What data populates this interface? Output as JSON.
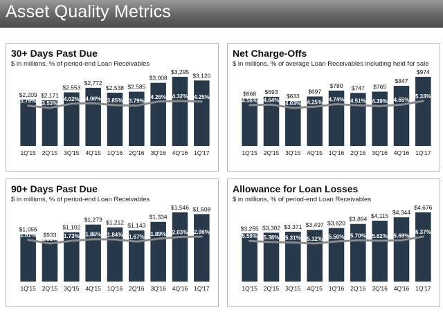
{
  "header": {
    "title": "Asset Quality Metrics"
  },
  "colors": {
    "bar": "#27394a",
    "line": "#8a8a8a",
    "bar_label": "#ffffff",
    "header_top": "#9a9a9a",
    "header_bottom": "#4a4a4a"
  },
  "chart_data": [
    {
      "type": "bar",
      "title": "30+ Days Past Due",
      "subtitle": "$ in millions, % of period-end Loan Receivables",
      "categories": [
        "1Q'15",
        "2Q'15",
        "3Q'15",
        "4Q'15",
        "1Q'16",
        "2Q'16",
        "3Q'16",
        "4Q'16",
        "1Q'17"
      ],
      "series": [
        {
          "values": [
            2209,
            2171,
            2553,
            2772,
            2538,
            2585,
            3008,
            3295,
            3120
          ],
          "labels": [
            "$2,209",
            "$2,171",
            "$2,553",
            "$2,772",
            "$2,538",
            "$2,585",
            "$3,008",
            "$3,295",
            "$3,120"
          ]
        },
        {
          "type": "line",
          "values": [
            3.79,
            3.53,
            4.02,
            4.06,
            3.85,
            3.79,
            4.26,
            4.32,
            4.25
          ],
          "labels": [
            "3.79%",
            "3.53%",
            "4.02%",
            "4.06%",
            "3.85%",
            "3.79%",
            "4.26%",
            "4.32%",
            "4.25%"
          ]
        }
      ],
      "grid": false
    },
    {
      "type": "bar",
      "title": "Net Charge-Offs",
      "subtitle": "$ in millions, % of average Loan Receivables including held for sale",
      "categories": [
        "1Q'15",
        "2Q'15",
        "3Q'15",
        "4Q'15",
        "1Q'16",
        "2Q'16",
        "3Q'16",
        "4Q'16",
        "1Q'17"
      ],
      "series": [
        {
          "values": [
            668,
            693,
            633,
            697,
            780,
            747,
            765,
            847,
            974
          ],
          "labels": [
            "$668",
            "$693",
            "$633",
            "$697",
            "$780",
            "$747",
            "$765",
            "$847",
            "$974"
          ]
        },
        {
          "type": "line",
          "values": [
            4.56,
            4.64,
            4.03,
            4.25,
            4.74,
            4.51,
            4.39,
            4.65,
            5.33
          ],
          "labels": [
            "4.56%",
            "4.64%",
            "4.03%",
            "4.25%",
            "4.74%",
            "4.51%",
            "4.39%",
            "4.65%",
            "5.33%"
          ]
        }
      ],
      "grid": false
    },
    {
      "type": "bar",
      "title": "90+ Days Past Due",
      "subtitle": "$ in millions, % of period-end Loan Receivables",
      "categories": [
        "1Q'15",
        "2Q'15",
        "3Q'15",
        "4Q'15",
        "1Q'16",
        "2Q'16",
        "3Q'16",
        "4Q'16",
        "1Q'17"
      ],
      "series": [
        {
          "values": [
            1056,
            933,
            1102,
            1273,
            1212,
            1143,
            1334,
            1546,
            1508
          ],
          "labels": [
            "$1,056",
            "$933",
            "$1,102",
            "$1,273",
            "$1,212",
            "$1,143",
            "$1,334",
            "$1,546",
            "$1,508"
          ]
        },
        {
          "type": "line",
          "values": [
            1.81,
            1.52,
            1.73,
            1.86,
            1.84,
            1.67,
            1.89,
            2.03,
            2.06
          ],
          "labels": [
            "1.81%",
            "1.52%",
            "1.73%",
            "1.86%",
            "1.84%",
            "1.67%",
            "1.89%",
            "2.03%",
            "2.06%"
          ]
        }
      ],
      "grid": false
    },
    {
      "type": "bar",
      "title": "Allowance for Loan Losses",
      "subtitle": "$ in millions, % of period-end Loan Receivables",
      "categories": [
        "1Q'15",
        "2Q'15",
        "3Q'15",
        "4Q'15",
        "1Q'16",
        "2Q'16",
        "3Q'16",
        "4Q'16",
        "1Q'17"
      ],
      "series": [
        {
          "values": [
            3255,
            3302,
            3371,
            3497,
            3620,
            3894,
            4115,
            4344,
            4676
          ],
          "labels": [
            "$3,255",
            "$3,302",
            "$3,371",
            "$3,497",
            "$3,620",
            "$3,894",
            "$4,115",
            "$4,344",
            "$4,676"
          ]
        },
        {
          "type": "line",
          "values": [
            5.59,
            5.38,
            5.31,
            5.12,
            5.5,
            5.7,
            5.62,
            5.69,
            6.37
          ],
          "labels": [
            "5.59%",
            "5.38%",
            "5.31%",
            "5.12%",
            "5.50%",
            "5.70%",
            "5.62%",
            "5.69%",
            "6.37%"
          ]
        }
      ],
      "grid": false
    }
  ]
}
